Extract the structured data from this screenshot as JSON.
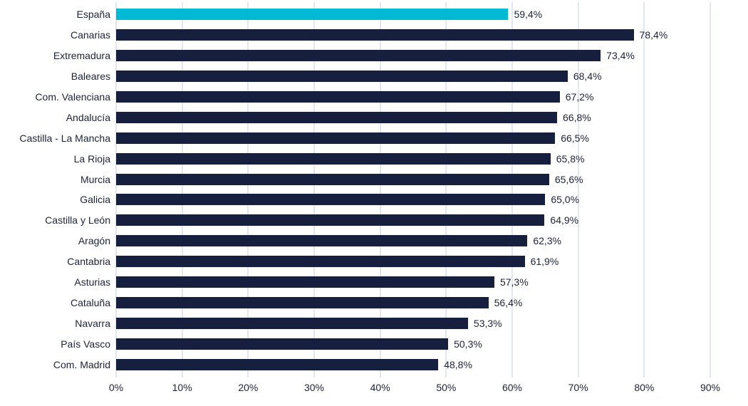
{
  "chart_data": {
    "type": "bar",
    "orientation": "horizontal",
    "title": "",
    "xlabel": "",
    "ylabel": "",
    "xlim": [
      0,
      90
    ],
    "x_tick_labels": [
      "0%",
      "10%",
      "20%",
      "30%",
      "40%",
      "50%",
      "60%",
      "70%",
      "80%",
      "90%"
    ],
    "grid": "vertical",
    "legend": "none",
    "categories": [
      "España",
      "Canarias",
      "Extremadura",
      "Baleares",
      "Com. Valenciana",
      "Andalucía",
      "Castilla - La Mancha",
      "La Rioja",
      "Murcia",
      "Galicia",
      "Castilla y León",
      "Aragón",
      "Cantabria",
      "Asturias",
      "Cataluña",
      "Navarra",
      "País Vasco",
      "Com. Madrid"
    ],
    "values": [
      59.4,
      78.4,
      73.4,
      68.4,
      67.2,
      66.8,
      66.5,
      65.8,
      65.6,
      65.0,
      64.9,
      62.3,
      61.9,
      57.3,
      56.4,
      53.3,
      50.3,
      48.8
    ],
    "value_labels": [
      "59,4%",
      "78,4%",
      "73,4%",
      "68,4%",
      "67,2%",
      "66,8%",
      "66,5%",
      "65,8%",
      "65,6%",
      "65,0%",
      "64,9%",
      "62,3%",
      "61,9%",
      "57,3%",
      "56,4%",
      "53,3%",
      "50,3%",
      "48,8%"
    ],
    "highlight_category": "España",
    "colors": {
      "highlight_bar": "#00b9d2",
      "bar": "#161f3e",
      "gridline": "#c4cede",
      "label_text": "#1c2238",
      "background": "#ffffff"
    }
  }
}
